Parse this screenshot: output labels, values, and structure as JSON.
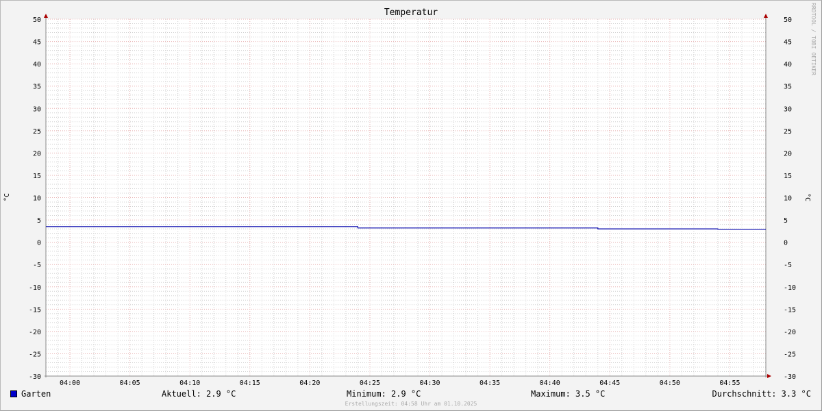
{
  "chart_data": {
    "type": "line",
    "title": "Temperatur",
    "ylabel": "°C",
    "ylabel_right": "°C",
    "ylim": [
      -30,
      50
    ],
    "yticks": [
      50,
      45,
      40,
      35,
      30,
      25,
      20,
      15,
      10,
      5,
      0,
      -5,
      -10,
      -15,
      -20,
      -25,
      -30
    ],
    "xlim": [
      "03:58",
      "04:58"
    ],
    "xticks": [
      "04:00",
      "04:05",
      "04:10",
      "04:15",
      "04:20",
      "04:25",
      "04:30",
      "04:35",
      "04:40",
      "04:45",
      "04:50",
      "04:55"
    ],
    "grid": true,
    "series": [
      {
        "name": "Garten",
        "color": "#0000aa",
        "x": [
          "03:58",
          "04:24",
          "04:24",
          "04:44",
          "04:44",
          "04:54",
          "04:54",
          "04:58"
        ],
        "y": [
          3.5,
          3.5,
          3.2,
          3.2,
          3.0,
          3.0,
          2.9,
          2.9
        ]
      }
    ]
  },
  "legend": {
    "series_name": "Garten",
    "current": "Aktuell: 2.9 °C",
    "minimum": "Minimum: 2.9 °C",
    "maximum": "Maximum: 3.5 °C",
    "average": "Durchschnitt: 3.3 °C"
  },
  "footer": "Erstellungszeit: 04:58 Uhr am 01.10.2025",
  "watermark": "RRDTOOL / TOBI OETIKER"
}
